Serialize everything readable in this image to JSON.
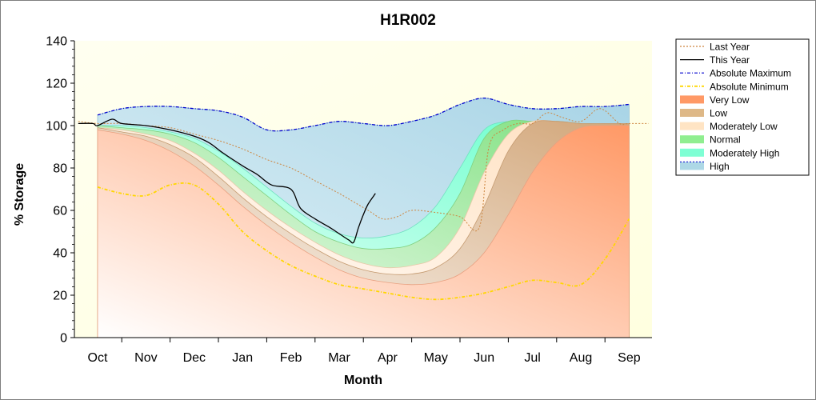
{
  "chart_data": {
    "type": "area",
    "title": "H1R002",
    "xlabel": "Month",
    "ylabel": "% Storage",
    "categories": [
      "Oct",
      "Nov",
      "Dec",
      "Jan",
      "Feb",
      "Mar",
      "Apr",
      "May",
      "Jun",
      "Jul",
      "Aug",
      "Sep"
    ],
    "ylim": [
      0,
      140
    ],
    "yticks": [
      0,
      20,
      40,
      60,
      80,
      100,
      120,
      140
    ],
    "legend_position": "right",
    "colors": {
      "plot_background": "#fffff0",
      "very_low": "#ff9966",
      "low": "#deb887",
      "moderately_low": "#ffe4c4",
      "normal": "#90ee90",
      "moderately_high": "#7fffd4",
      "high": "#add8e6",
      "last_year": "#cd853f",
      "this_year": "#000000",
      "absolute_maximum": "#0000cd",
      "absolute_minimum": "#ffd700"
    },
    "band_x": [
      0,
      0.5,
      1,
      1.5,
      2,
      2.5,
      3,
      3.5,
      4,
      4.5,
      5,
      5.5,
      6,
      6.5,
      7,
      7.5,
      8,
      8.5,
      9,
      9.5,
      10,
      10.5,
      11
    ],
    "bands": [
      {
        "name": "Very Low",
        "upper": [
          98,
          96,
          93,
          88,
          81,
          72,
          62,
          53,
          45,
          38,
          32,
          28,
          26,
          25,
          26,
          30,
          40,
          58,
          78,
          92,
          99,
          100,
          100
        ]
      },
      {
        "name": "Low",
        "upper": [
          99,
          97,
          95,
          91,
          85,
          76,
          66,
          57,
          49,
          42,
          36,
          32,
          30,
          30,
          33,
          42,
          62,
          88,
          101,
          102,
          101,
          101,
          101
        ]
      },
      {
        "name": "Moderately Low",
        "upper": [
          99,
          98,
          96,
          93,
          87,
          79,
          69,
          60,
          52,
          45,
          39,
          35,
          33,
          34,
          38,
          52,
          78,
          96,
          102,
          102,
          101,
          101,
          101
        ]
      },
      {
        "name": "Normal",
        "upper": [
          100,
          99,
          98,
          96,
          92,
          85,
          76,
          67,
          58,
          50,
          45,
          42,
          42,
          44,
          52,
          68,
          94,
          102,
          102,
          102,
          101,
          101,
          101
        ]
      },
      {
        "name": "Moderately High",
        "upper": [
          100,
          100,
          99,
          97,
          94,
          88,
          80,
          71,
          62,
          54,
          49,
          47,
          48,
          52,
          62,
          80,
          98,
          102,
          102,
          102,
          101,
          101,
          101
        ]
      },
      {
        "name": "High",
        "upper": [
          105,
          108,
          109,
          109,
          108,
          107,
          104,
          98,
          98,
          100,
          102,
          101,
          100,
          102,
          105,
          110,
          113,
          110,
          108,
          108,
          109,
          109,
          110
        ]
      }
    ],
    "series": [
      {
        "name": "Last Year",
        "style": "dotted",
        "x": [
          -0.4,
          0,
          0.5,
          1,
          1.5,
          2,
          2.5,
          3,
          3.5,
          4,
          4.5,
          5,
          5.3,
          5.6,
          5.9,
          6.2,
          6.5,
          7,
          7.5,
          7.9,
          8.1,
          8.4,
          8.7,
          9,
          9.3,
          9.6,
          10,
          10.4,
          10.8,
          11,
          11.4
        ],
        "y": [
          102,
          101,
          101,
          100,
          99,
          96,
          93,
          89,
          84,
          80,
          74,
          68,
          64,
          60,
          56,
          57,
          60,
          59,
          57,
          52,
          90,
          98,
          101,
          101,
          106,
          104,
          102,
          108,
          101,
          101,
          101
        ]
      },
      {
        "name": "This Year",
        "style": "solid",
        "x": [
          -0.4,
          -0.1,
          0,
          0.3,
          0.5,
          1,
          1.5,
          2,
          2.3,
          2.6,
          3,
          3.3,
          3.6,
          4,
          4.2,
          4.5,
          4.8,
          5,
          5.2,
          5.3,
          5.4,
          5.5,
          5.6,
          5.75
        ],
        "y": [
          101,
          101,
          100,
          103,
          101,
          100,
          98,
          95,
          92,
          87,
          81,
          77,
          72,
          70,
          61,
          56,
          52,
          49,
          46,
          45,
          52,
          58,
          63,
          68
        ]
      },
      {
        "name": "Absolute Maximum",
        "style": "dashdot",
        "x": [
          0,
          0.5,
          1,
          1.5,
          2,
          2.5,
          3,
          3.5,
          4,
          4.5,
          5,
          5.5,
          6,
          6.5,
          7,
          7.5,
          8,
          8.5,
          9,
          9.5,
          10,
          10.5,
          11
        ],
        "y": [
          105,
          108,
          109,
          109,
          108,
          107,
          104,
          98,
          98,
          100,
          102,
          101,
          100,
          102,
          105,
          110,
          113,
          110,
          108,
          108,
          109,
          109,
          110
        ]
      },
      {
        "name": "Absolute Minimum",
        "style": "dashdot",
        "x": [
          0,
          0.5,
          1,
          1.5,
          2,
          2.5,
          3,
          3.5,
          4,
          4.5,
          5,
          5.5,
          6,
          6.5,
          7,
          7.5,
          8,
          8.5,
          9,
          9.5,
          10,
          10.5,
          11
        ],
        "y": [
          71,
          68,
          67,
          72,
          72,
          63,
          50,
          41,
          34,
          29,
          25,
          23,
          21,
          19,
          18,
          19,
          21,
          24,
          27,
          26,
          25,
          37,
          56
        ]
      }
    ],
    "legend": [
      {
        "label": "Last Year",
        "kind": "line",
        "style": "dotted",
        "color": "#cd853f"
      },
      {
        "label": "This Year",
        "kind": "line",
        "style": "solid",
        "color": "#000000"
      },
      {
        "label": "Absolute Maximum",
        "kind": "line",
        "style": "dashdot",
        "color": "#0000cd"
      },
      {
        "label": "Absolute Minimum",
        "kind": "line",
        "style": "dashdot",
        "color": "#ffd700"
      },
      {
        "label": "Very Low",
        "kind": "area",
        "color": "#ff9966"
      },
      {
        "label": "Low",
        "kind": "area",
        "color": "#deb887"
      },
      {
        "label": "Moderately Low",
        "kind": "area",
        "color": "#ffe4c4"
      },
      {
        "label": "Normal",
        "kind": "area",
        "color": "#90ee90"
      },
      {
        "label": "Moderately High",
        "kind": "area",
        "color": "#7fffd4"
      },
      {
        "label": "High",
        "kind": "area",
        "color": "#add8e6"
      }
    ]
  }
}
